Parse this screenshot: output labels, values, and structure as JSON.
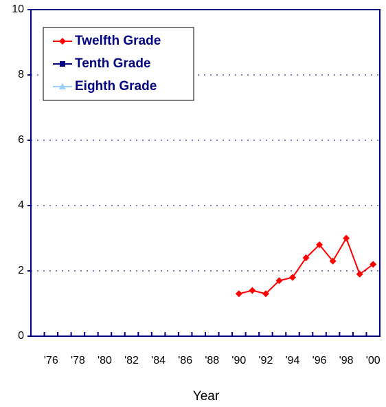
{
  "chart_data": {
    "type": "line",
    "x_label": "Year",
    "categories": [
      null,
      "'76",
      null,
      "'78",
      null,
      "'80",
      null,
      "'82",
      null,
      "'84",
      null,
      "'86",
      null,
      "'88",
      null,
      "'90",
      null,
      "'92",
      null,
      "'94",
      null,
      "'96",
      null,
      "'98",
      null,
      "'00"
    ],
    "series": [
      {
        "name": "Twelfth Grade",
        "color": "#ff0000",
        "marker": "diamond",
        "values": [
          null,
          null,
          null,
          null,
          null,
          null,
          null,
          null,
          null,
          null,
          null,
          null,
          null,
          null,
          null,
          1.3,
          1.4,
          1.3,
          1.7,
          1.8,
          2.4,
          2.8,
          2.3,
          3.0,
          1.9,
          2.2
        ]
      },
      {
        "name": "Tenth Grade",
        "color": "#000080",
        "marker": "square",
        "values": [
          null,
          null,
          null,
          null,
          null,
          null,
          null,
          null,
          null,
          null,
          null,
          null,
          null,
          null,
          null,
          null,
          null,
          null,
          null,
          null,
          null,
          null,
          null,
          null,
          null,
          null
        ]
      },
      {
        "name": "Eighth Grade",
        "color": "#99ccff",
        "marker": "triangle",
        "values": [
          null,
          null,
          null,
          null,
          null,
          null,
          null,
          null,
          null,
          null,
          null,
          null,
          null,
          null,
          null,
          null,
          null,
          null,
          null,
          null,
          null,
          null,
          null,
          null,
          null,
          null
        ]
      }
    ],
    "ylim": [
      0,
      10
    ],
    "yticks": [
      0,
      2,
      4,
      6,
      8,
      10
    ],
    "grid": true,
    "legend": "upper-left"
  }
}
